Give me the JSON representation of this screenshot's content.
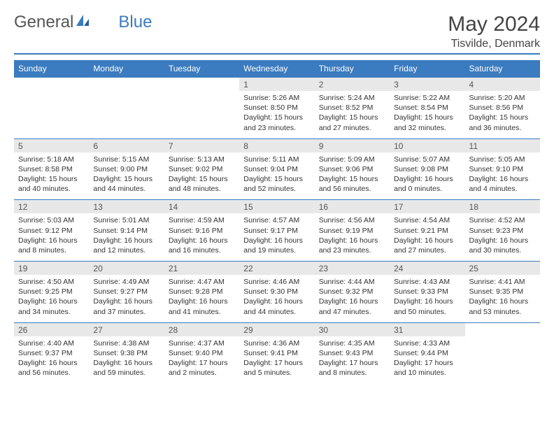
{
  "brand": {
    "part1": "General",
    "part2": "Blue"
  },
  "title": "May 2024",
  "location": "Tisvilde, Denmark",
  "colors": {
    "accent": "#3b7bbf",
    "daynum_bg": "#e8e8e8",
    "text": "#333333",
    "title_text": "#444444"
  },
  "weekday_headers": [
    "Sunday",
    "Monday",
    "Tuesday",
    "Wednesday",
    "Thursday",
    "Friday",
    "Saturday"
  ],
  "weeks": [
    [
      {},
      {},
      {},
      {
        "day": "1",
        "sunrise": "5:26 AM",
        "sunset": "8:50 PM",
        "dl_h": "15",
        "dl_m": "23"
      },
      {
        "day": "2",
        "sunrise": "5:24 AM",
        "sunset": "8:52 PM",
        "dl_h": "15",
        "dl_m": "27"
      },
      {
        "day": "3",
        "sunrise": "5:22 AM",
        "sunset": "8:54 PM",
        "dl_h": "15",
        "dl_m": "32"
      },
      {
        "day": "4",
        "sunrise": "5:20 AM",
        "sunset": "8:56 PM",
        "dl_h": "15",
        "dl_m": "36"
      }
    ],
    [
      {
        "day": "5",
        "sunrise": "5:18 AM",
        "sunset": "8:58 PM",
        "dl_h": "15",
        "dl_m": "40"
      },
      {
        "day": "6",
        "sunrise": "5:15 AM",
        "sunset": "9:00 PM",
        "dl_h": "15",
        "dl_m": "44"
      },
      {
        "day": "7",
        "sunrise": "5:13 AM",
        "sunset": "9:02 PM",
        "dl_h": "15",
        "dl_m": "48"
      },
      {
        "day": "8",
        "sunrise": "5:11 AM",
        "sunset": "9:04 PM",
        "dl_h": "15",
        "dl_m": "52"
      },
      {
        "day": "9",
        "sunrise": "5:09 AM",
        "sunset": "9:06 PM",
        "dl_h": "15",
        "dl_m": "56"
      },
      {
        "day": "10",
        "sunrise": "5:07 AM",
        "sunset": "9:08 PM",
        "dl_h": "16",
        "dl_m": "0"
      },
      {
        "day": "11",
        "sunrise": "5:05 AM",
        "sunset": "9:10 PM",
        "dl_h": "16",
        "dl_m": "4"
      }
    ],
    [
      {
        "day": "12",
        "sunrise": "5:03 AM",
        "sunset": "9:12 PM",
        "dl_h": "16",
        "dl_m": "8"
      },
      {
        "day": "13",
        "sunrise": "5:01 AM",
        "sunset": "9:14 PM",
        "dl_h": "16",
        "dl_m": "12"
      },
      {
        "day": "14",
        "sunrise": "4:59 AM",
        "sunset": "9:16 PM",
        "dl_h": "16",
        "dl_m": "16"
      },
      {
        "day": "15",
        "sunrise": "4:57 AM",
        "sunset": "9:17 PM",
        "dl_h": "16",
        "dl_m": "19"
      },
      {
        "day": "16",
        "sunrise": "4:56 AM",
        "sunset": "9:19 PM",
        "dl_h": "16",
        "dl_m": "23"
      },
      {
        "day": "17",
        "sunrise": "4:54 AM",
        "sunset": "9:21 PM",
        "dl_h": "16",
        "dl_m": "27"
      },
      {
        "day": "18",
        "sunrise": "4:52 AM",
        "sunset": "9:23 PM",
        "dl_h": "16",
        "dl_m": "30"
      }
    ],
    [
      {
        "day": "19",
        "sunrise": "4:50 AM",
        "sunset": "9:25 PM",
        "dl_h": "16",
        "dl_m": "34"
      },
      {
        "day": "20",
        "sunrise": "4:49 AM",
        "sunset": "9:27 PM",
        "dl_h": "16",
        "dl_m": "37"
      },
      {
        "day": "21",
        "sunrise": "4:47 AM",
        "sunset": "9:28 PM",
        "dl_h": "16",
        "dl_m": "41"
      },
      {
        "day": "22",
        "sunrise": "4:46 AM",
        "sunset": "9:30 PM",
        "dl_h": "16",
        "dl_m": "44"
      },
      {
        "day": "23",
        "sunrise": "4:44 AM",
        "sunset": "9:32 PM",
        "dl_h": "16",
        "dl_m": "47"
      },
      {
        "day": "24",
        "sunrise": "4:43 AM",
        "sunset": "9:33 PM",
        "dl_h": "16",
        "dl_m": "50"
      },
      {
        "day": "25",
        "sunrise": "4:41 AM",
        "sunset": "9:35 PM",
        "dl_h": "16",
        "dl_m": "53"
      }
    ],
    [
      {
        "day": "26",
        "sunrise": "4:40 AM",
        "sunset": "9:37 PM",
        "dl_h": "16",
        "dl_m": "56"
      },
      {
        "day": "27",
        "sunrise": "4:38 AM",
        "sunset": "9:38 PM",
        "dl_h": "16",
        "dl_m": "59"
      },
      {
        "day": "28",
        "sunrise": "4:37 AM",
        "sunset": "9:40 PM",
        "dl_h": "17",
        "dl_m": "2"
      },
      {
        "day": "29",
        "sunrise": "4:36 AM",
        "sunset": "9:41 PM",
        "dl_h": "17",
        "dl_m": "5"
      },
      {
        "day": "30",
        "sunrise": "4:35 AM",
        "sunset": "9:43 PM",
        "dl_h": "17",
        "dl_m": "8"
      },
      {
        "day": "31",
        "sunrise": "4:33 AM",
        "sunset": "9:44 PM",
        "dl_h": "17",
        "dl_m": "10"
      },
      {}
    ]
  ]
}
